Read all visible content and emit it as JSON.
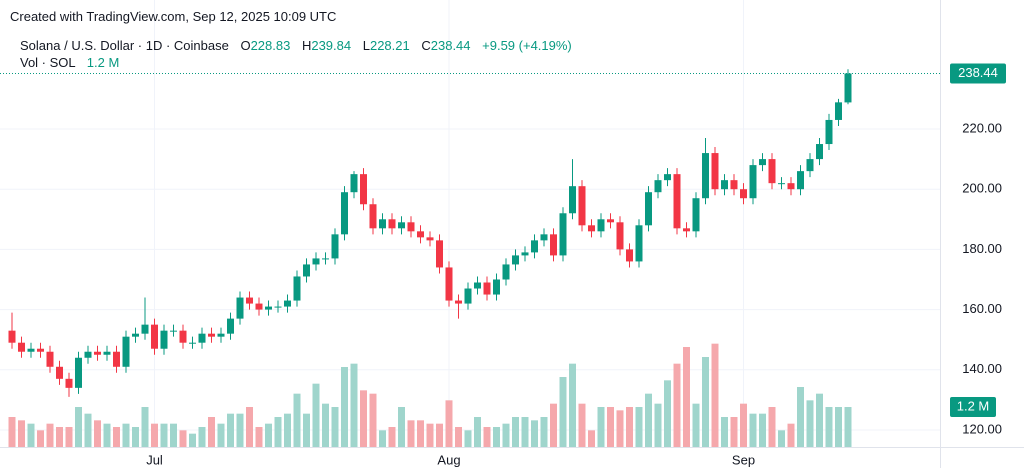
{
  "header": {
    "created": "Created with TradingView.com, Sep 12, 2025 10:09 UTC",
    "symbol": "Solana / U.S. Dollar · 1D · Coinbase",
    "ohlc": [
      {
        "label": "O",
        "value": "228.83"
      },
      {
        "label": "H",
        "value": "239.84"
      },
      {
        "label": "L",
        "value": "228.21"
      },
      {
        "label": "C",
        "value": "238.44"
      }
    ],
    "change": "+9.59 (+4.19%)",
    "volume_label": "Vol · SOL",
    "volume_value": "1.2 M"
  },
  "chart_data": {
    "type": "candlestick",
    "categories": [
      null,
      null,
      null,
      null,
      null,
      null,
      null,
      null,
      null,
      null,
      null,
      null,
      null,
      null,
      null,
      "Jul",
      null,
      null,
      null,
      null,
      null,
      null,
      null,
      null,
      null,
      null,
      null,
      null,
      null,
      null,
      null,
      null,
      null,
      null,
      null,
      null,
      null,
      null,
      null,
      null,
      null,
      null,
      null,
      null,
      null,
      null,
      "Aug",
      null,
      null,
      null,
      null,
      null,
      null,
      null,
      null,
      null,
      null,
      null,
      null,
      null,
      null,
      null,
      null,
      null,
      null,
      null,
      null,
      null,
      null,
      null,
      null,
      null,
      null,
      null,
      null,
      null,
      null,
      "Sep",
      null,
      null,
      null,
      null,
      null,
      null,
      null,
      null,
      null,
      null,
      null
    ],
    "open": [
      153,
      149,
      146,
      147,
      146,
      141,
      137,
      134,
      144,
      146,
      145,
      146,
      141,
      151,
      152,
      155,
      147,
      153,
      153,
      149,
      149,
      152,
      151,
      152,
      157,
      164,
      162,
      160,
      161,
      161,
      163,
      171,
      175,
      177,
      177,
      185,
      199,
      205,
      195,
      187,
      190,
      187,
      189,
      186,
      184,
      183,
      174,
      163,
      162,
      167,
      169,
      165,
      170,
      175,
      178,
      179,
      183,
      185,
      178,
      192,
      201,
      188,
      186,
      190,
      189,
      180,
      176,
      188,
      199,
      203,
      205,
      187,
      186,
      197,
      212,
      200,
      203,
      200,
      197,
      208,
      210,
      202,
      202,
      200,
      206,
      210,
      215,
      223,
      228.83
    ],
    "high": [
      159,
      151,
      149,
      149,
      148,
      143,
      139,
      146,
      148,
      148,
      148,
      148,
      153,
      154,
      164,
      157,
      155,
      155,
      155,
      151,
      154,
      154,
      154,
      159,
      166,
      166,
      164,
      163,
      163,
      165,
      173,
      177,
      179,
      179,
      187,
      201,
      206,
      207,
      197,
      192,
      192,
      191,
      191,
      188,
      186,
      185,
      176,
      165,
      169,
      171,
      171,
      172,
      177,
      180,
      181,
      185,
      187,
      187,
      194,
      210,
      203,
      190,
      192,
      192,
      191,
      182,
      190,
      201,
      205,
      207,
      207,
      189,
      199,
      217,
      214,
      205,
      205,
      202,
      210,
      212,
      212,
      204,
      204,
      208,
      212,
      217,
      225,
      230,
      239.84
    ],
    "low": [
      147,
      144,
      144,
      144,
      139,
      135,
      131,
      132,
      142,
      143,
      143,
      139,
      139,
      149,
      150,
      145,
      145,
      151,
      147,
      147,
      147,
      149,
      149,
      150,
      155,
      160,
      158,
      158,
      159,
      159,
      161,
      169,
      173,
      175,
      175,
      183,
      197,
      193,
      185,
      185,
      185,
      185,
      184,
      182,
      181,
      172,
      161,
      157,
      160,
      165,
      163,
      163,
      168,
      173,
      176,
      177,
      181,
      176,
      176,
      190,
      186,
      184,
      184,
      187,
      178,
      174,
      174,
      186,
      197,
      201,
      185,
      184,
      184,
      195,
      198,
      198,
      198,
      195,
      195,
      206,
      200,
      200,
      198,
      198,
      204,
      208,
      213,
      221,
      228.21
    ],
    "close": [
      149,
      146,
      147,
      146,
      141,
      137,
      134,
      144,
      146,
      145,
      146,
      141,
      151,
      152,
      155,
      147,
      153,
      153,
      149,
      149,
      152,
      151,
      152,
      157,
      164,
      162,
      160,
      161,
      161,
      163,
      171,
      175,
      177,
      177,
      185,
      199,
      205,
      195,
      187,
      190,
      187,
      189,
      186,
      184,
      183,
      174,
      163,
      162,
      167,
      169,
      165,
      170,
      175,
      178,
      179,
      183,
      185,
      178,
      192,
      201,
      188,
      186,
      190,
      189,
      180,
      176,
      188,
      199,
      203,
      205,
      187,
      186,
      197,
      212,
      200,
      203,
      200,
      197,
      208,
      210,
      202,
      202,
      200,
      206,
      210,
      215,
      223,
      228.85,
      238.44
    ],
    "volume": [
      0.9,
      0.8,
      0.7,
      0.5,
      0.7,
      0.6,
      0.6,
      1.2,
      1.0,
      0.8,
      0.7,
      0.6,
      0.7,
      0.6,
      1.2,
      0.7,
      0.7,
      0.7,
      0.5,
      0.4,
      0.6,
      0.9,
      0.7,
      1.0,
      1.0,
      1.2,
      0.6,
      0.7,
      0.9,
      1.0,
      1.6,
      1.0,
      1.9,
      1.3,
      1.2,
      2.4,
      2.5,
      1.7,
      1.6,
      0.5,
      0.6,
      1.2,
      0.8,
      0.8,
      0.7,
      0.7,
      1.4,
      0.6,
      0.5,
      0.9,
      0.6,
      0.6,
      0.7,
      0.9,
      0.9,
      0.8,
      0.9,
      1.3,
      2.1,
      2.5,
      1.3,
      0.5,
      1.2,
      1.2,
      1.1,
      1.2,
      1.2,
      1.6,
      1.3,
      2.0,
      2.5,
      3.0,
      1.3,
      2.7,
      3.1,
      0.9,
      0.9,
      1.3,
      1.0,
      1.0,
      1.2,
      0.5,
      0.7,
      1.8,
      1.4,
      1.6,
      1.2,
      1.2,
      1.2
    ],
    "ylim": [
      114.35,
      253.55
    ],
    "yticks": [
      {
        "value": 120,
        "label": "120.00"
      },
      {
        "value": 140,
        "label": "140.00"
      },
      {
        "value": 160,
        "label": "160.00"
      },
      {
        "value": 180,
        "label": "180.00"
      },
      {
        "value": 200,
        "label": "200.00"
      },
      {
        "value": 220,
        "label": "220.00"
      }
    ],
    "vlim": [
      0,
      6
    ],
    "grid": true,
    "up_color": "#089981",
    "down_color": "#f23645",
    "volume_up_color": "#9fd5cc",
    "volume_down_color": "#f5a8ac"
  }
}
